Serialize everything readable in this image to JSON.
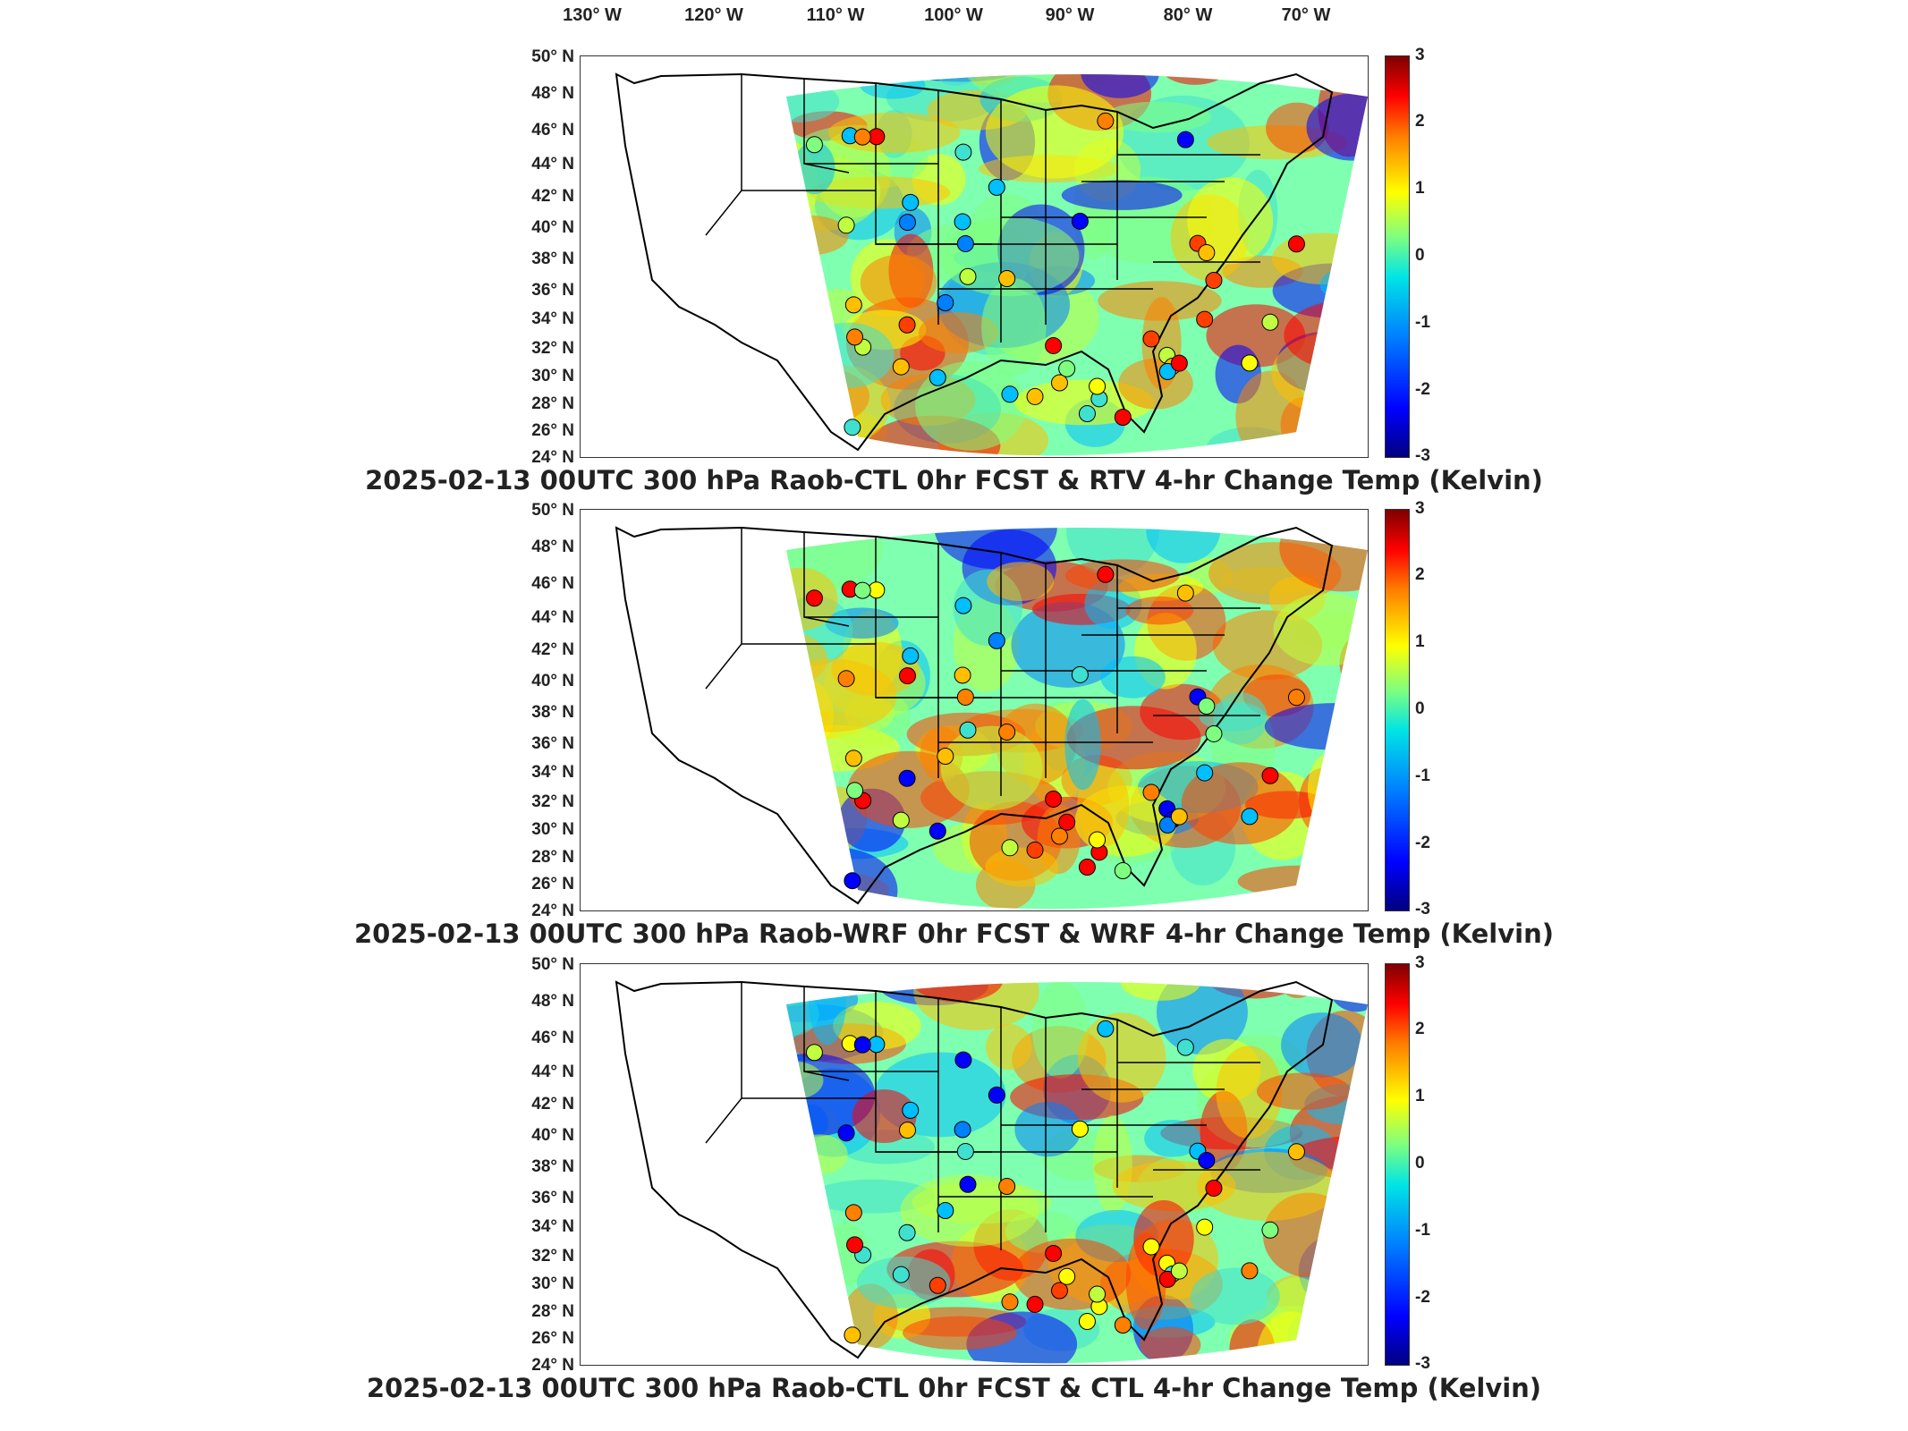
{
  "longitude_labels": [
    "130° W",
    "120° W",
    "110° W",
    "100° W",
    "90° W",
    "80° W",
    "70° W"
  ],
  "latitude_labels": [
    "50° N",
    "48° N",
    "46° N",
    "44° N",
    "42° N",
    "40° N",
    "38° N",
    "36° N",
    "34° N",
    "32° N",
    "30° N",
    "28° N",
    "26° N",
    "24° N"
  ],
  "colorbar_ticks": [
    "3",
    "2",
    "1",
    "0",
    "-1",
    "-2",
    "-3"
  ],
  "colormap": "jet",
  "panels": [
    {
      "title": "2025-02-13 00UTC 300 hPa Raob-CTL 0hr FCST & RTV 4-hr Change Temp (Kelvin)"
    },
    {
      "title": "2025-02-13 00UTC 300 hPa Raob-WRF 0hr FCST & WRF 4-hr Change Temp (Kelvin)"
    },
    {
      "title": "2025-02-13 00UTC 300 hPa Raob-CTL 0hr FCST & CTL 4-hr Change Temp (Kelvin)"
    }
  ]
}
